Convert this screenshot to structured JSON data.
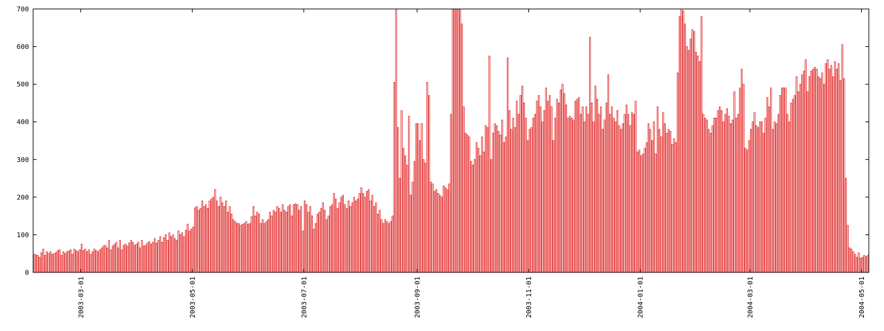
{
  "chart_data": {
    "type": "bar",
    "color": "#e02020",
    "ylim": [
      0,
      700
    ],
    "yticks": [
      0,
      100,
      200,
      300,
      400,
      500,
      600,
      700
    ],
    "xlim": [
      "2003-02-03",
      "2004-05-05"
    ],
    "xticks": [
      "2003-03-01",
      "2003-05-01",
      "2003-07-01",
      "2003-09-01",
      "2003-11-01",
      "2004-01-01",
      "2004-03-01",
      "2004-05-01"
    ],
    "x": [
      "2003-02-03",
      "2003-02-04",
      "2003-02-05",
      "2003-02-06",
      "2003-02-07",
      "2003-02-08",
      "2003-02-09",
      "2003-02-10",
      "2003-02-11",
      "2003-02-12",
      "2003-02-13",
      "2003-02-14",
      "2003-02-15",
      "2003-02-16",
      "2003-02-17",
      "2003-02-18",
      "2003-02-19",
      "2003-02-20",
      "2003-02-21",
      "2003-02-22",
      "2003-02-23",
      "2003-02-24",
      "2003-02-25",
      "2003-02-26",
      "2003-02-27",
      "2003-02-28",
      "2003-03-01",
      "2003-03-02",
      "2003-03-03",
      "2003-03-04",
      "2003-03-05",
      "2003-03-06",
      "2003-03-07",
      "2003-03-08",
      "2003-03-09",
      "2003-03-10",
      "2003-03-11",
      "2003-03-12",
      "2003-03-13",
      "2003-03-14",
      "2003-03-15",
      "2003-03-16",
      "2003-03-17",
      "2003-03-18",
      "2003-03-19",
      "2003-03-20",
      "2003-03-21",
      "2003-03-22",
      "2003-03-23",
      "2003-03-24",
      "2003-03-25",
      "2003-03-26",
      "2003-03-27",
      "2003-03-28",
      "2003-03-29",
      "2003-03-30",
      "2003-03-31",
      "2003-04-01",
      "2003-04-02",
      "2003-04-03",
      "2003-04-04",
      "2003-04-05",
      "2003-04-06",
      "2003-04-07",
      "2003-04-08",
      "2003-04-09",
      "2003-04-10",
      "2003-04-11",
      "2003-04-12",
      "2003-04-13",
      "2003-04-14",
      "2003-04-15",
      "2003-04-16",
      "2003-04-17",
      "2003-04-18",
      "2003-04-19",
      "2003-04-20",
      "2003-04-21",
      "2003-04-22",
      "2003-04-23",
      "2003-04-24",
      "2003-04-25",
      "2003-04-26",
      "2003-04-27",
      "2003-04-28",
      "2003-04-29",
      "2003-04-30",
      "2003-05-01",
      "2003-05-02",
      "2003-05-03",
      "2003-05-04",
      "2003-05-05",
      "2003-05-06",
      "2003-05-07",
      "2003-05-08",
      "2003-05-09",
      "2003-05-10",
      "2003-05-11",
      "2003-05-12",
      "2003-05-13",
      "2003-05-14",
      "2003-05-15",
      "2003-05-16",
      "2003-05-17",
      "2003-05-18",
      "2003-05-19",
      "2003-05-20",
      "2003-05-21",
      "2003-05-22",
      "2003-05-23",
      "2003-05-24",
      "2003-05-25",
      "2003-05-26",
      "2003-05-27",
      "2003-05-28",
      "2003-05-29",
      "2003-05-30",
      "2003-05-31",
      "2003-06-01",
      "2003-06-02",
      "2003-06-03",
      "2003-06-04",
      "2003-06-05",
      "2003-06-06",
      "2003-06-07",
      "2003-06-08",
      "2003-06-09",
      "2003-06-10",
      "2003-06-11",
      "2003-06-12",
      "2003-06-13",
      "2003-06-14",
      "2003-06-15",
      "2003-06-16",
      "2003-06-17",
      "2003-06-18",
      "2003-06-19",
      "2003-06-20",
      "2003-06-21",
      "2003-06-22",
      "2003-06-23",
      "2003-06-24",
      "2003-06-25",
      "2003-06-26",
      "2003-06-27",
      "2003-06-28",
      "2003-06-29",
      "2003-06-30",
      "2003-07-01",
      "2003-07-02",
      "2003-07-03",
      "2003-07-04",
      "2003-07-05",
      "2003-07-06",
      "2003-07-07",
      "2003-07-08",
      "2003-07-09",
      "2003-07-10",
      "2003-07-11",
      "2003-07-12",
      "2003-07-13",
      "2003-07-14",
      "2003-07-15",
      "2003-07-16",
      "2003-07-17",
      "2003-07-18",
      "2003-07-19",
      "2003-07-20",
      "2003-07-21",
      "2003-07-22",
      "2003-07-23",
      "2003-07-24",
      "2003-07-25",
      "2003-07-26",
      "2003-07-27",
      "2003-07-28",
      "2003-07-29",
      "2003-07-30",
      "2003-07-31",
      "2003-08-01",
      "2003-08-02",
      "2003-08-03",
      "2003-08-04",
      "2003-08-05",
      "2003-08-06",
      "2003-08-07",
      "2003-08-08",
      "2003-08-09",
      "2003-08-10",
      "2003-08-11",
      "2003-08-12",
      "2003-08-13",
      "2003-08-14",
      "2003-08-15",
      "2003-08-16",
      "2003-08-17",
      "2003-08-18",
      "2003-08-19",
      "2003-08-20",
      "2003-08-21",
      "2003-08-22",
      "2003-08-23",
      "2003-08-24",
      "2003-08-25",
      "2003-08-26",
      "2003-08-27",
      "2003-08-28",
      "2003-08-29",
      "2003-08-30",
      "2003-08-31",
      "2003-09-01",
      "2003-09-02",
      "2003-09-03",
      "2003-09-04",
      "2003-09-05",
      "2003-09-06",
      "2003-09-07",
      "2003-09-08",
      "2003-09-09",
      "2003-09-10",
      "2003-09-11",
      "2003-09-12",
      "2003-09-13",
      "2003-09-14",
      "2003-09-15",
      "2003-09-16",
      "2003-09-17",
      "2003-09-18",
      "2003-09-19",
      "2003-09-20",
      "2003-09-21",
      "2003-09-22",
      "2003-09-23",
      "2003-09-24",
      "2003-09-25",
      "2003-09-26",
      "2003-09-27",
      "2003-09-28",
      "2003-09-29",
      "2003-09-30",
      "2003-10-01",
      "2003-10-02",
      "2003-10-03",
      "2003-10-04",
      "2003-10-05",
      "2003-10-06",
      "2003-10-07",
      "2003-10-08",
      "2003-10-09",
      "2003-10-10",
      "2003-10-11",
      "2003-10-12",
      "2003-10-13",
      "2003-10-14",
      "2003-10-15",
      "2003-10-16",
      "2003-10-17",
      "2003-10-18",
      "2003-10-19",
      "2003-10-20",
      "2003-10-21",
      "2003-10-22",
      "2003-10-23",
      "2003-10-24",
      "2003-10-25",
      "2003-10-26",
      "2003-10-27",
      "2003-10-28",
      "2003-10-29",
      "2003-10-30",
      "2003-10-31",
      "2003-11-01",
      "2003-11-02",
      "2003-11-03",
      "2003-11-04",
      "2003-11-05",
      "2003-11-06",
      "2003-11-07",
      "2003-11-08",
      "2003-11-09",
      "2003-11-10",
      "2003-11-11",
      "2003-11-12",
      "2003-11-13",
      "2003-11-14",
      "2003-11-15",
      "2003-11-16",
      "2003-11-17",
      "2003-11-18",
      "2003-11-19",
      "2003-11-20",
      "2003-11-21",
      "2003-11-22",
      "2003-11-23",
      "2003-11-24",
      "2003-11-25",
      "2003-11-26",
      "2003-11-27",
      "2003-11-28",
      "2003-11-29",
      "2003-11-30",
      "2003-12-01",
      "2003-12-02",
      "2003-12-03",
      "2003-12-04",
      "2003-12-05",
      "2003-12-06",
      "2003-12-07",
      "2003-12-08",
      "2003-12-09",
      "2003-12-10",
      "2003-12-11",
      "2003-12-12",
      "2003-12-13",
      "2003-12-14",
      "2003-12-15",
      "2003-12-16",
      "2003-12-17",
      "2003-12-18",
      "2003-12-19",
      "2003-12-20",
      "2003-12-21",
      "2003-12-22",
      "2003-12-23",
      "2003-12-24",
      "2003-12-25",
      "2003-12-26",
      "2003-12-27",
      "2003-12-28",
      "2003-12-29",
      "2003-12-30",
      "2003-12-31",
      "2004-01-01",
      "2004-01-02",
      "2004-01-03",
      "2004-01-04",
      "2004-01-05",
      "2004-01-06",
      "2004-01-07",
      "2004-01-08",
      "2004-01-09",
      "2004-01-10",
      "2004-01-11",
      "2004-01-12",
      "2004-01-13",
      "2004-01-14",
      "2004-01-15",
      "2004-01-16",
      "2004-01-17",
      "2004-01-18",
      "2004-01-19",
      "2004-01-20",
      "2004-01-21",
      "2004-01-22",
      "2004-01-23",
      "2004-01-24",
      "2004-01-25",
      "2004-01-26",
      "2004-01-27",
      "2004-01-28",
      "2004-01-29",
      "2004-01-30",
      "2004-01-31",
      "2004-02-01",
      "2004-02-02",
      "2004-02-03",
      "2004-02-04",
      "2004-02-05",
      "2004-02-06",
      "2004-02-07",
      "2004-02-08",
      "2004-02-09",
      "2004-02-10",
      "2004-02-11",
      "2004-02-12",
      "2004-02-13",
      "2004-02-14",
      "2004-02-15",
      "2004-02-16",
      "2004-02-17",
      "2004-02-18",
      "2004-02-19",
      "2004-02-20",
      "2004-02-21",
      "2004-02-22",
      "2004-02-23",
      "2004-02-24",
      "2004-02-25",
      "2004-02-26",
      "2004-02-27",
      "2004-02-28",
      "2004-02-29",
      "2004-03-01",
      "2004-03-02",
      "2004-03-03",
      "2004-03-04",
      "2004-03-05",
      "2004-03-06",
      "2004-03-07",
      "2004-03-08",
      "2004-03-09",
      "2004-03-10",
      "2004-03-11",
      "2004-03-12",
      "2004-03-13",
      "2004-03-14",
      "2004-03-15",
      "2004-03-16",
      "2004-03-17",
      "2004-03-18",
      "2004-03-19",
      "2004-03-20",
      "2004-03-21",
      "2004-03-22",
      "2004-03-23",
      "2004-03-24",
      "2004-03-25",
      "2004-03-26",
      "2004-03-27",
      "2004-03-28",
      "2004-03-29",
      "2004-03-30",
      "2004-03-31",
      "2004-04-01",
      "2004-04-02",
      "2004-04-03",
      "2004-04-04",
      "2004-04-05",
      "2004-04-06",
      "2004-04-07",
      "2004-04-08",
      "2004-04-09",
      "2004-04-10",
      "2004-04-11",
      "2004-04-12",
      "2004-04-13",
      "2004-04-14",
      "2004-04-15",
      "2004-04-16",
      "2004-04-17",
      "2004-04-18",
      "2004-04-19",
      "2004-04-20",
      "2004-04-21",
      "2004-04-22",
      "2004-04-23",
      "2004-04-24",
      "2004-04-25",
      "2004-04-26",
      "2004-04-27",
      "2004-04-28",
      "2004-04-29",
      "2004-04-30",
      "2004-05-01",
      "2004-05-02",
      "2004-05-03",
      "2004-05-04"
    ],
    "values": [
      48,
      47,
      45,
      40,
      52,
      62,
      45,
      55,
      50,
      55,
      48,
      50,
      53,
      58,
      60,
      45,
      55,
      50,
      55,
      57,
      60,
      48,
      62,
      58,
      55,
      60,
      75,
      58,
      62,
      55,
      60,
      48,
      55,
      62,
      58,
      55,
      60,
      65,
      70,
      72,
      65,
      85,
      60,
      70,
      75,
      80,
      65,
      85,
      60,
      72,
      75,
      70,
      78,
      85,
      80,
      72,
      75,
      80,
      65,
      85,
      70,
      72,
      78,
      82,
      75,
      80,
      90,
      78,
      85,
      95,
      80,
      92,
      100,
      85,
      105,
      95,
      100,
      90,
      85,
      110,
      100,
      105,
      95,
      112,
      128,
      110,
      115,
      120,
      172,
      175,
      165,
      170,
      190,
      175,
      180,
      170,
      190,
      195,
      200,
      220,
      190,
      175,
      200,
      185,
      175,
      190,
      160,
      175,
      155,
      140,
      135,
      130,
      130,
      125,
      128,
      130,
      135,
      128,
      130,
      148,
      175,
      150,
      160,
      155,
      130,
      140,
      130,
      135,
      140,
      160,
      150,
      165,
      160,
      175,
      170,
      160,
      180,
      165,
      160,
      175,
      180,
      150,
      180,
      182,
      180,
      165,
      175,
      110,
      190,
      180,
      160,
      175,
      150,
      115,
      130,
      155,
      160,
      170,
      185,
      165,
      140,
      150,
      175,
      180,
      210,
      195,
      170,
      185,
      200,
      205,
      180,
      170,
      190,
      175,
      185,
      200,
      190,
      195,
      210,
      225,
      210,
      200,
      215,
      220,
      190,
      205,
      175,
      185,
      155,
      165,
      140,
      130,
      140,
      135,
      130,
      135,
      150,
      505,
      700,
      385,
      250,
      430,
      330,
      310,
      285,
      415,
      205,
      240,
      295,
      395,
      395,
      350,
      395,
      300,
      290,
      505,
      470,
      240,
      235,
      215,
      220,
      210,
      205,
      200,
      230,
      225,
      220,
      235,
      420,
      700,
      700,
      700,
      700,
      700,
      660,
      440,
      370,
      365,
      360,
      295,
      285,
      300,
      345,
      330,
      310,
      360,
      320,
      390,
      385,
      575,
      300,
      370,
      395,
      390,
      375,
      365,
      405,
      345,
      360,
      570,
      430,
      380,
      410,
      385,
      455,
      420,
      470,
      495,
      450,
      410,
      350,
      380,
      385,
      410,
      420,
      455,
      470,
      440,
      400,
      430,
      490,
      455,
      470,
      440,
      350,
      410,
      460,
      450,
      485,
      500,
      475,
      445,
      410,
      415,
      410,
      405,
      455,
      460,
      465,
      420,
      440,
      400,
      440,
      420,
      625,
      450,
      400,
      495,
      460,
      420,
      440,
      380,
      405,
      450,
      525,
      420,
      440,
      410,
      400,
      430,
      390,
      380,
      395,
      420,
      445,
      420,
      390,
      425,
      420,
      455,
      320,
      325,
      310,
      315,
      330,
      345,
      395,
      380,
      350,
      400,
      315,
      440,
      380,
      360,
      425,
      395,
      370,
      380,
      375,
      340,
      355,
      345,
      530,
      680,
      700,
      695,
      660,
      600,
      590,
      620,
      645,
      640,
      585,
      575,
      560,
      680,
      420,
      410,
      405,
      380,
      370,
      390,
      410,
      410,
      430,
      440,
      430,
      400,
      420,
      435,
      415,
      395,
      405,
      480,
      410,
      420,
      490,
      540,
      500,
      330,
      325,
      350,
      380,
      400,
      425,
      390,
      385,
      400,
      400,
      370,
      410,
      465,
      440,
      490,
      380,
      400,
      395,
      420,
      470,
      490,
      490,
      490,
      420,
      400,
      450,
      460,
      470,
      520,
      480,
      500,
      525,
      535,
      565,
      480,
      520,
      535,
      540,
      545,
      540,
      520,
      515,
      530,
      500,
      555,
      565,
      540,
      550,
      520,
      560,
      540,
      555,
      510,
      605,
      515,
      250,
      125,
      65,
      62,
      55,
      48,
      40,
      52,
      38,
      40,
      45,
      42,
      45
    ]
  }
}
